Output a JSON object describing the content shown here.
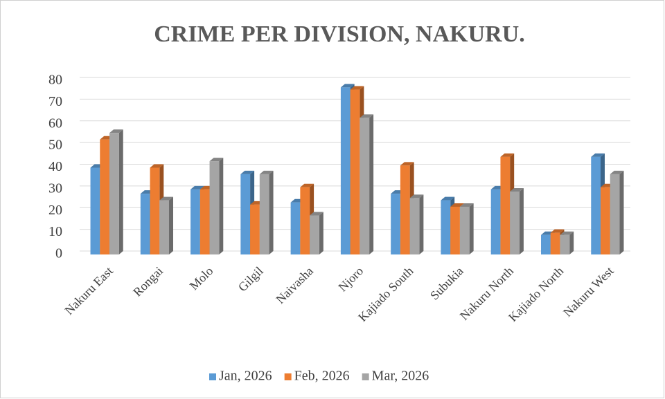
{
  "chart_data": {
    "type": "bar3d",
    "title": "CRIME PER DIVISION, NAKURU.",
    "categories": [
      "Nakuru East",
      "Rongai",
      "Molo",
      "Gilgil",
      "Naivasha",
      "Njoro",
      "Kajiado South",
      "Subukia",
      "Nakuru North",
      "Kajiado North",
      "Nakuru West"
    ],
    "series": [
      {
        "name": "Jan, 2026",
        "color": "#5b9bd5",
        "values": [
          40,
          28,
          30,
          37,
          24,
          77,
          28,
          25,
          30,
          9,
          45
        ]
      },
      {
        "name": "Feb, 2026",
        "color": "#ed7d31",
        "values": [
          53,
          40,
          30,
          23,
          31,
          76,
          41,
          22,
          45,
          10,
          31
        ]
      },
      {
        "name": "Mar, 2026",
        "color": "#a5a5a5",
        "values": [
          56,
          25,
          43,
          37,
          18,
          63,
          26,
          22,
          29,
          9,
          37
        ]
      }
    ],
    "ylim": [
      0,
      80
    ],
    "yticks": [
      0,
      10,
      20,
      30,
      40,
      50,
      60,
      70,
      80
    ],
    "grid": true,
    "legend": "bottom"
  }
}
